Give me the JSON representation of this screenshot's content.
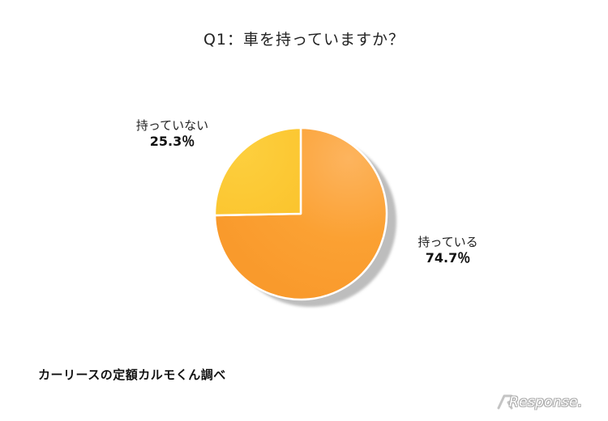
{
  "chart_data": {
    "type": "pie",
    "title": "Q1：車を持っていますか？",
    "slices": [
      {
        "label": "持っている",
        "value": 74.7,
        "value_text": "74.7％",
        "color": "#FBA133"
      },
      {
        "label": "持っていない",
        "value": 25.3,
        "value_text": "25.3％",
        "color": "#FBC731"
      }
    ],
    "start_angle_deg": 0,
    "direction": "clockwise",
    "legend": "none"
  },
  "source": "カーリースの定額カルモくん調べ",
  "watermark": "Response."
}
